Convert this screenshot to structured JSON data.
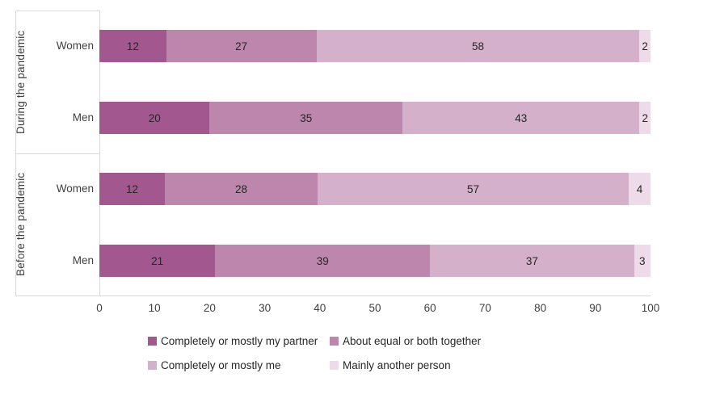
{
  "chart_data": {
    "type": "bar",
    "orientation": "horizontal",
    "stacked": true,
    "title": "",
    "xlabel": "",
    "ylabel": "",
    "x_axis": {
      "min": 0,
      "max": 100,
      "tick_interval": 10,
      "ticks": [
        0,
        10,
        20,
        30,
        40,
        50,
        60,
        70,
        80,
        90,
        100
      ]
    },
    "grid": "off",
    "legend_position": "bottom",
    "series": [
      {
        "name": "Completely or mostly my partner",
        "color": "#a2588e"
      },
      {
        "name": "About equal or both together",
        "color": "#bc86ad"
      },
      {
        "name": "Completely or mostly me",
        "color": "#d4b0ca"
      },
      {
        "name": "Mainly another person",
        "color": "#eddbe9"
      }
    ],
    "groups": [
      {
        "label": "During the pandemic",
        "rows": [
          {
            "label": "Women",
            "values": [
              12,
              27,
              58,
              2
            ]
          },
          {
            "label": "Men",
            "values": [
              20,
              35,
              43,
              2
            ]
          }
        ]
      },
      {
        "label": "Before the pandemic",
        "rows": [
          {
            "label": "Women",
            "values": [
              12,
              28,
              57,
              4
            ]
          },
          {
            "label": "Men",
            "values": [
              21,
              39,
              37,
              3
            ]
          }
        ]
      }
    ]
  },
  "colors": {
    "axis_line": "#d9d9d9",
    "axis_text": "#404040",
    "value_text": "#262626"
  }
}
